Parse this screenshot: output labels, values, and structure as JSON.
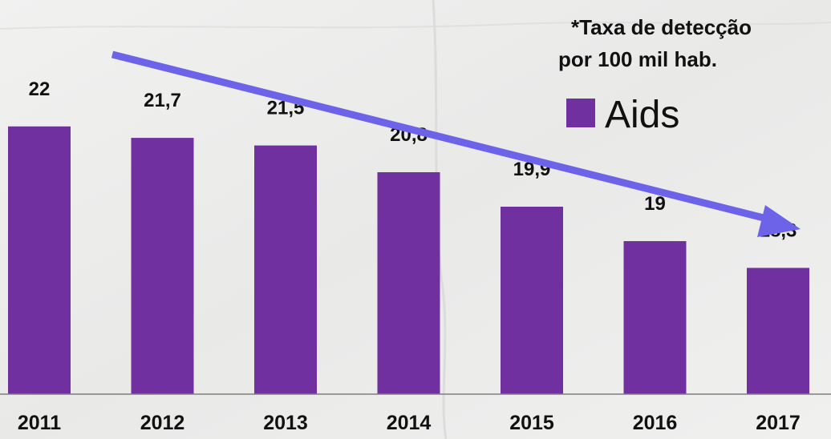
{
  "chart_data": {
    "type": "bar",
    "categories": [
      "2011",
      "2012",
      "2013",
      "2014",
      "2015",
      "2016",
      "2017"
    ],
    "series": [
      {
        "name": "Aids",
        "values": [
          22,
          21.7,
          21.5,
          20.8,
          19.9,
          19,
          18.3
        ],
        "labels": [
          "22",
          "21,7",
          "21,5",
          "20,8",
          "19,9",
          "19",
          "18,3"
        ],
        "color": "#7030a0"
      }
    ],
    "title": "",
    "xlabel": "",
    "ylabel": "",
    "ylim": [
      15,
      23
    ],
    "grid": false,
    "legend_position": "top-right",
    "trend_arrow": {
      "direction": "down",
      "color": "#6c63e8"
    }
  },
  "note": {
    "line1": "*Taxa de detecção",
    "line2": "por 100 mil hab."
  },
  "legend": {
    "label": "Aids",
    "color": "#7030a0"
  },
  "colors": {
    "background": "#ececeb",
    "bar": "#7030a0",
    "arrow": "#6c63e8",
    "text": "#111111",
    "axis": "#7f7f7f"
  }
}
